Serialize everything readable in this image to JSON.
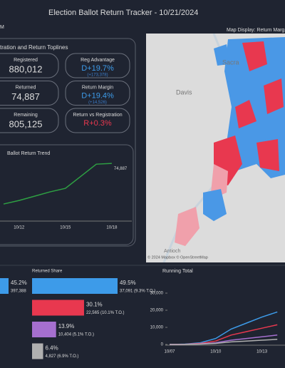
{
  "header": {
    "title": "Election Ballot Return Tracker - 10/21/2024",
    "timestamp": "M",
    "map_label": "Map Display: Return Marg"
  },
  "toplines": {
    "title": "tration and Return Toplines",
    "cards": [
      {
        "label": "Registered",
        "value": "880,012"
      },
      {
        "label": "Returned",
        "value": "74,887"
      },
      {
        "label": "Remaining",
        "value": "805,125"
      }
    ],
    "metrics": [
      {
        "label": "Reg Advantage",
        "value": "D+19.7%",
        "sub": "(+173,378)",
        "color": "#3d9be9"
      },
      {
        "label": "Return Margin",
        "value": "D+19.4%",
        "sub": "(+14,526)",
        "color": "#3d9be9"
      },
      {
        "label": "Return vs Registration",
        "value": "R+0.3%",
        "color": "#e8384f"
      }
    ]
  },
  "map": {
    "places": [
      "Davis",
      "Sacra",
      "Antioch"
    ],
    "attribution": "© 2024 Mapbox © OpenStreetMap"
  },
  "chart_data": [
    {
      "type": "line",
      "title": "Ballot Return Trend",
      "categories": [
        null,
        "10/12",
        null,
        null,
        "10/15",
        null,
        null,
        "10/18"
      ],
      "series": [
        {
          "color": "#2ea043",
          "values": [
            18700,
            23600,
            29500,
            35500,
            40400,
            57100,
            73900,
            74887
          ],
          "value_labels": [
            null,
            null,
            null,
            null,
            null,
            null,
            null,
            "74,887"
          ]
        }
      ],
      "ylim": [
        0,
        80000
      ]
    },
    {
      "type": "hbar",
      "values": [
        45.2
      ],
      "value_labels": [
        "45.2%"
      ],
      "count_labels": [
        "397,388"
      ],
      "colors": [
        "#3d9be9"
      ]
    },
    {
      "type": "hbar",
      "title": "Returned Share",
      "values": [
        49.5,
        30.1,
        13.9,
        6.4
      ],
      "value_labels": [
        "49.5%",
        "30.1%",
        "13.9%",
        "6.4%"
      ],
      "count_labels": [
        "37,091 (9.3% T.O.)",
        "22,565 (10.1% T.O.)",
        "10,404 (5.1% T.O.)",
        "4,827 (6.9% T.O.)"
      ],
      "colors": [
        "#3d9be9",
        "#e8384f",
        "#a56fcf",
        "#b0b0b0"
      ]
    },
    {
      "type": "line",
      "title": "Running Total",
      "categories": [
        "10/07",
        null,
        null,
        "10/10",
        null,
        null,
        "10/13",
        null
      ],
      "series": [
        {
          "color": "#3d9be9",
          "values": [
            0,
            200,
            1000,
            3500,
            9000,
            12500,
            16000,
            19000
          ]
        },
        {
          "color": "#e8384f",
          "values": [
            0,
            100,
            600,
            2000,
            5500,
            7500,
            9500,
            11500
          ]
        },
        {
          "color": "#a56fcf",
          "values": [
            0,
            50,
            300,
            1000,
            2500,
            3500,
            4500,
            5500
          ]
        },
        {
          "color": "#b0b0b0",
          "values": [
            0,
            30,
            200,
            600,
            1500,
            2000,
            2500,
            3000
          ]
        }
      ],
      "ylim": [
        0,
        35000
      ],
      "yticks": [
        0,
        {
          "value": 10000,
          "label": "10,000"
        },
        {
          "value": 20000,
          "label": "20,000"
        },
        {
          "value": 30000,
          "label": "30,000"
        }
      ]
    }
  ]
}
